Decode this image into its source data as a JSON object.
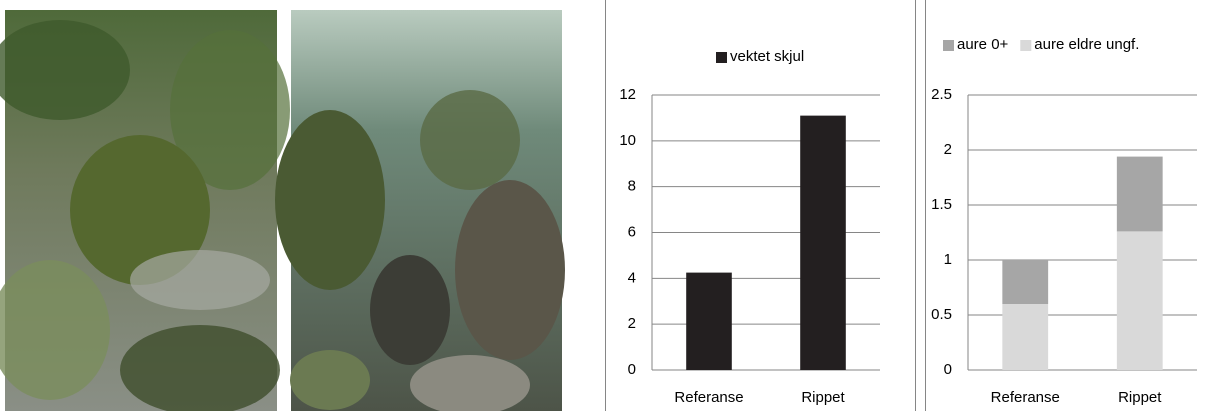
{
  "chart_data": [
    {
      "type": "bar",
      "categories": [
        "Referanse",
        "Rippet"
      ],
      "series": [
        {
          "name": "vektet skjul",
          "color": "#231f20",
          "values": [
            4.25,
            11.1
          ]
        }
      ],
      "ylim": [
        0,
        12
      ],
      "yticks": [
        0,
        2,
        4,
        6,
        8,
        10,
        12
      ],
      "grid": true
    },
    {
      "type": "bar",
      "stacked": true,
      "categories": [
        "Referanse",
        "Rippet"
      ],
      "series": [
        {
          "name": "aure 0+",
          "color": "#a6a6a6",
          "values": [
            0.4,
            0.68
          ]
        },
        {
          "name": "aure eldre ungf.",
          "color": "#d9d9d9",
          "values": [
            0.6,
            1.26
          ]
        }
      ],
      "ylim": [
        0,
        2.5
      ],
      "yticks": [
        0,
        0.5,
        1,
        1.5,
        2,
        2.5
      ],
      "grid": true
    }
  ]
}
